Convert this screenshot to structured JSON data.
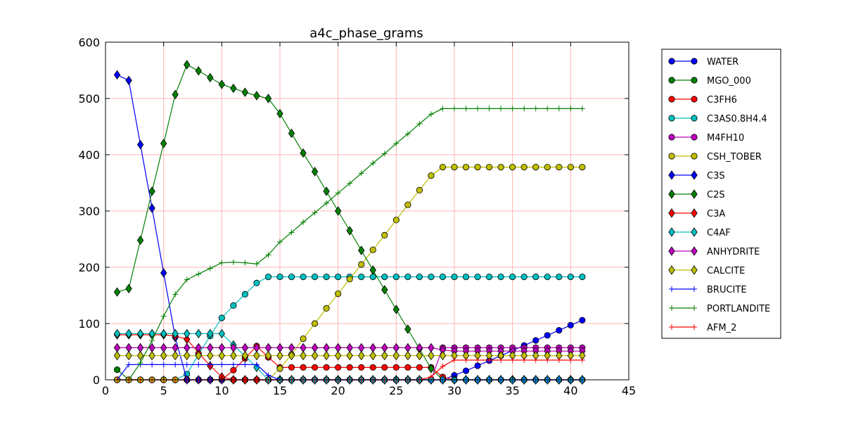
{
  "chart_data": {
    "type": "line",
    "title": "a4c_phase_grams",
    "xlabel": "",
    "ylabel": "",
    "xlim": [
      0,
      45
    ],
    "ylim": [
      0,
      600
    ],
    "xticks": [
      0,
      5,
      10,
      15,
      20,
      25,
      30,
      35,
      40,
      45
    ],
    "yticks": [
      0,
      100,
      200,
      300,
      400,
      500,
      600
    ],
    "grid": true,
    "legend_position": "outside-right",
    "x": [
      1,
      2,
      3,
      4,
      5,
      6,
      7,
      8,
      9,
      10,
      11,
      12,
      13,
      14,
      15,
      16,
      17,
      18,
      19,
      20,
      21,
      22,
      23,
      24,
      25,
      26,
      27,
      28,
      29,
      30,
      31,
      32,
      33,
      34,
      35,
      36,
      37,
      38,
      39,
      40,
      41
    ],
    "series": [
      {
        "name": "WATER",
        "color": "#0000ff",
        "marker": "circle",
        "values": [
          0,
          0,
          0,
          0,
          0,
          0,
          0,
          0,
          0,
          0,
          0,
          0,
          0,
          0,
          0,
          0,
          0,
          0,
          0,
          0,
          0,
          0,
          0,
          0,
          0,
          0,
          0,
          0,
          0,
          8,
          16,
          25,
          34,
          43,
          52,
          61,
          70,
          79,
          88,
          97,
          106
        ]
      },
      {
        "name": "MGO_000",
        "color": "#008000",
        "marker": "circle",
        "values": [
          18,
          0,
          0,
          0,
          0,
          0,
          0,
          0,
          0,
          0,
          0,
          0,
          0,
          0,
          0,
          0,
          0,
          0,
          0,
          0,
          0,
          0,
          0,
          0,
          0,
          0,
          0,
          0,
          0,
          0,
          0,
          0,
          0,
          0,
          0,
          0,
          0,
          0,
          0,
          0,
          0
        ]
      },
      {
        "name": "C3FH6",
        "color": "#ff0000",
        "marker": "circle",
        "values": [
          0,
          0,
          0,
          0,
          0,
          0,
          0,
          0,
          0,
          0,
          17,
          38,
          60,
          40,
          22,
          22,
          22,
          22,
          22,
          22,
          22,
          22,
          22,
          22,
          22,
          22,
          22,
          22,
          5,
          0,
          0,
          0,
          0,
          0,
          0,
          0,
          0,
          0,
          0,
          0,
          0
        ]
      },
      {
        "name": "C3AS0.8H4.4",
        "color": "#00bfbf",
        "marker": "circle",
        "values": [
          0,
          0,
          0,
          0,
          0,
          0,
          10,
          45,
          78,
          110,
          132,
          152,
          172,
          183,
          183,
          183,
          183,
          183,
          183,
          183,
          183,
          183,
          183,
          183,
          183,
          183,
          183,
          183,
          183,
          183,
          183,
          183,
          183,
          183,
          183,
          183,
          183,
          183,
          183,
          183,
          183
        ]
      },
      {
        "name": "M4FH10",
        "color": "#bf00bf",
        "marker": "circle",
        "values": [
          0,
          0,
          0,
          0,
          0,
          0,
          0,
          0,
          0,
          0,
          0,
          0,
          0,
          0,
          0,
          0,
          0,
          0,
          0,
          0,
          0,
          0,
          0,
          0,
          0,
          0,
          0,
          0,
          57,
          57,
          57,
          57,
          57,
          57,
          57,
          57,
          57,
          57,
          57,
          57,
          57
        ]
      },
      {
        "name": "CSH_TOBER",
        "color": "#bfbf00",
        "marker": "circle",
        "values": [
          0,
          0,
          0,
          0,
          0,
          0,
          0,
          0,
          0,
          0,
          0,
          0,
          0,
          0,
          20,
          45,
          73,
          100,
          127,
          153,
          179,
          205,
          231,
          257,
          284,
          311,
          337,
          363,
          378,
          378,
          378,
          378,
          378,
          378,
          378,
          378,
          378,
          378,
          378,
          378,
          378
        ]
      },
      {
        "name": "C3S",
        "color": "#0000ff",
        "marker": "diamond",
        "values": [
          542,
          532,
          418,
          305,
          190,
          75,
          0,
          0,
          0,
          0,
          0,
          0,
          0,
          0,
          0,
          0,
          0,
          0,
          0,
          0,
          0,
          0,
          0,
          0,
          0,
          0,
          0,
          0,
          0,
          0,
          0,
          0,
          0,
          0,
          0,
          0,
          0,
          0,
          0,
          0,
          0
        ]
      },
      {
        "name": "C2S",
        "color": "#008000",
        "marker": "diamond",
        "values": [
          156,
          162,
          248,
          335,
          420,
          507,
          560,
          549,
          537,
          525,
          518,
          511,
          505,
          500,
          473,
          438,
          403,
          370,
          335,
          300,
          265,
          230,
          195,
          160,
          125,
          90,
          55,
          20,
          0,
          0,
          0,
          0,
          0,
          0,
          0,
          0,
          0,
          0,
          0,
          0,
          0
        ]
      },
      {
        "name": "C3A",
        "color": "#ff0000",
        "marker": "diamond",
        "values": [
          80,
          80,
          80,
          80,
          80,
          78,
          72,
          48,
          25,
          5,
          0,
          0,
          0,
          0,
          0,
          0,
          0,
          0,
          0,
          0,
          0,
          0,
          0,
          0,
          0,
          0,
          0,
          0,
          0,
          0,
          0,
          0,
          0,
          0,
          0,
          0,
          0,
          0,
          0,
          0,
          0
        ]
      },
      {
        "name": "C4AF",
        "color": "#00bfbf",
        "marker": "diamond",
        "values": [
          82,
          82,
          82,
          82,
          82,
          82,
          82,
          82,
          82,
          82,
          62,
          42,
          22,
          0,
          0,
          0,
          0,
          0,
          0,
          0,
          0,
          0,
          0,
          0,
          0,
          0,
          0,
          0,
          0,
          0,
          0,
          0,
          0,
          0,
          0,
          0,
          0,
          0,
          0,
          0,
          0
        ]
      },
      {
        "name": "ANHYDRITE",
        "color": "#bf00bf",
        "marker": "diamond",
        "values": [
          57,
          57,
          57,
          57,
          57,
          57,
          57,
          57,
          57,
          57,
          57,
          57,
          57,
          57,
          57,
          57,
          57,
          57,
          57,
          57,
          57,
          57,
          57,
          57,
          57,
          57,
          57,
          57,
          53,
          51,
          51,
          51,
          51,
          51,
          51,
          51,
          51,
          51,
          51,
          51,
          51
        ]
      },
      {
        "name": "CALCITE",
        "color": "#bfbf00",
        "marker": "diamond",
        "values": [
          43,
          43,
          43,
          43,
          43,
          43,
          43,
          43,
          43,
          43,
          43,
          43,
          43,
          43,
          43,
          43,
          43,
          43,
          43,
          43,
          43,
          43,
          43,
          43,
          43,
          43,
          43,
          43,
          43,
          43,
          43,
          43,
          43,
          43,
          43,
          43,
          43,
          43,
          43,
          43,
          43
        ]
      },
      {
        "name": "BRUCITE",
        "color": "#0000ff",
        "marker": "plus",
        "values": [
          0,
          27,
          27,
          27,
          27,
          27,
          27,
          27,
          27,
          27,
          27,
          27,
          27,
          8,
          0,
          0,
          0,
          0,
          0,
          0,
          0,
          0,
          0,
          0,
          0,
          0,
          0,
          0,
          0,
          0,
          0,
          0,
          0,
          0,
          0,
          0,
          0,
          0,
          0,
          0,
          0
        ]
      },
      {
        "name": "PORTLANDITE",
        "color": "#008000",
        "marker": "plus",
        "values": [
          0,
          0,
          30,
          70,
          113,
          152,
          178,
          188,
          198,
          208,
          209,
          208,
          206,
          222,
          245,
          262,
          280,
          297,
          314,
          332,
          349,
          367,
          385,
          402,
          420,
          437,
          455,
          472,
          482,
          482,
          482,
          482,
          482,
          482,
          482,
          482,
          482,
          482,
          482,
          482,
          482
        ]
      },
      {
        "name": "AFM_2",
        "color": "#ff0000",
        "marker": "plus",
        "values": [
          0,
          0,
          0,
          0,
          0,
          0,
          0,
          0,
          0,
          0,
          0,
          0,
          0,
          0,
          0,
          0,
          0,
          0,
          0,
          0,
          0,
          0,
          0,
          0,
          0,
          0,
          0,
          5,
          24,
          35,
          35,
          35,
          35,
          35,
          35,
          35,
          35,
          35,
          35,
          35,
          35
        ]
      }
    ]
  }
}
